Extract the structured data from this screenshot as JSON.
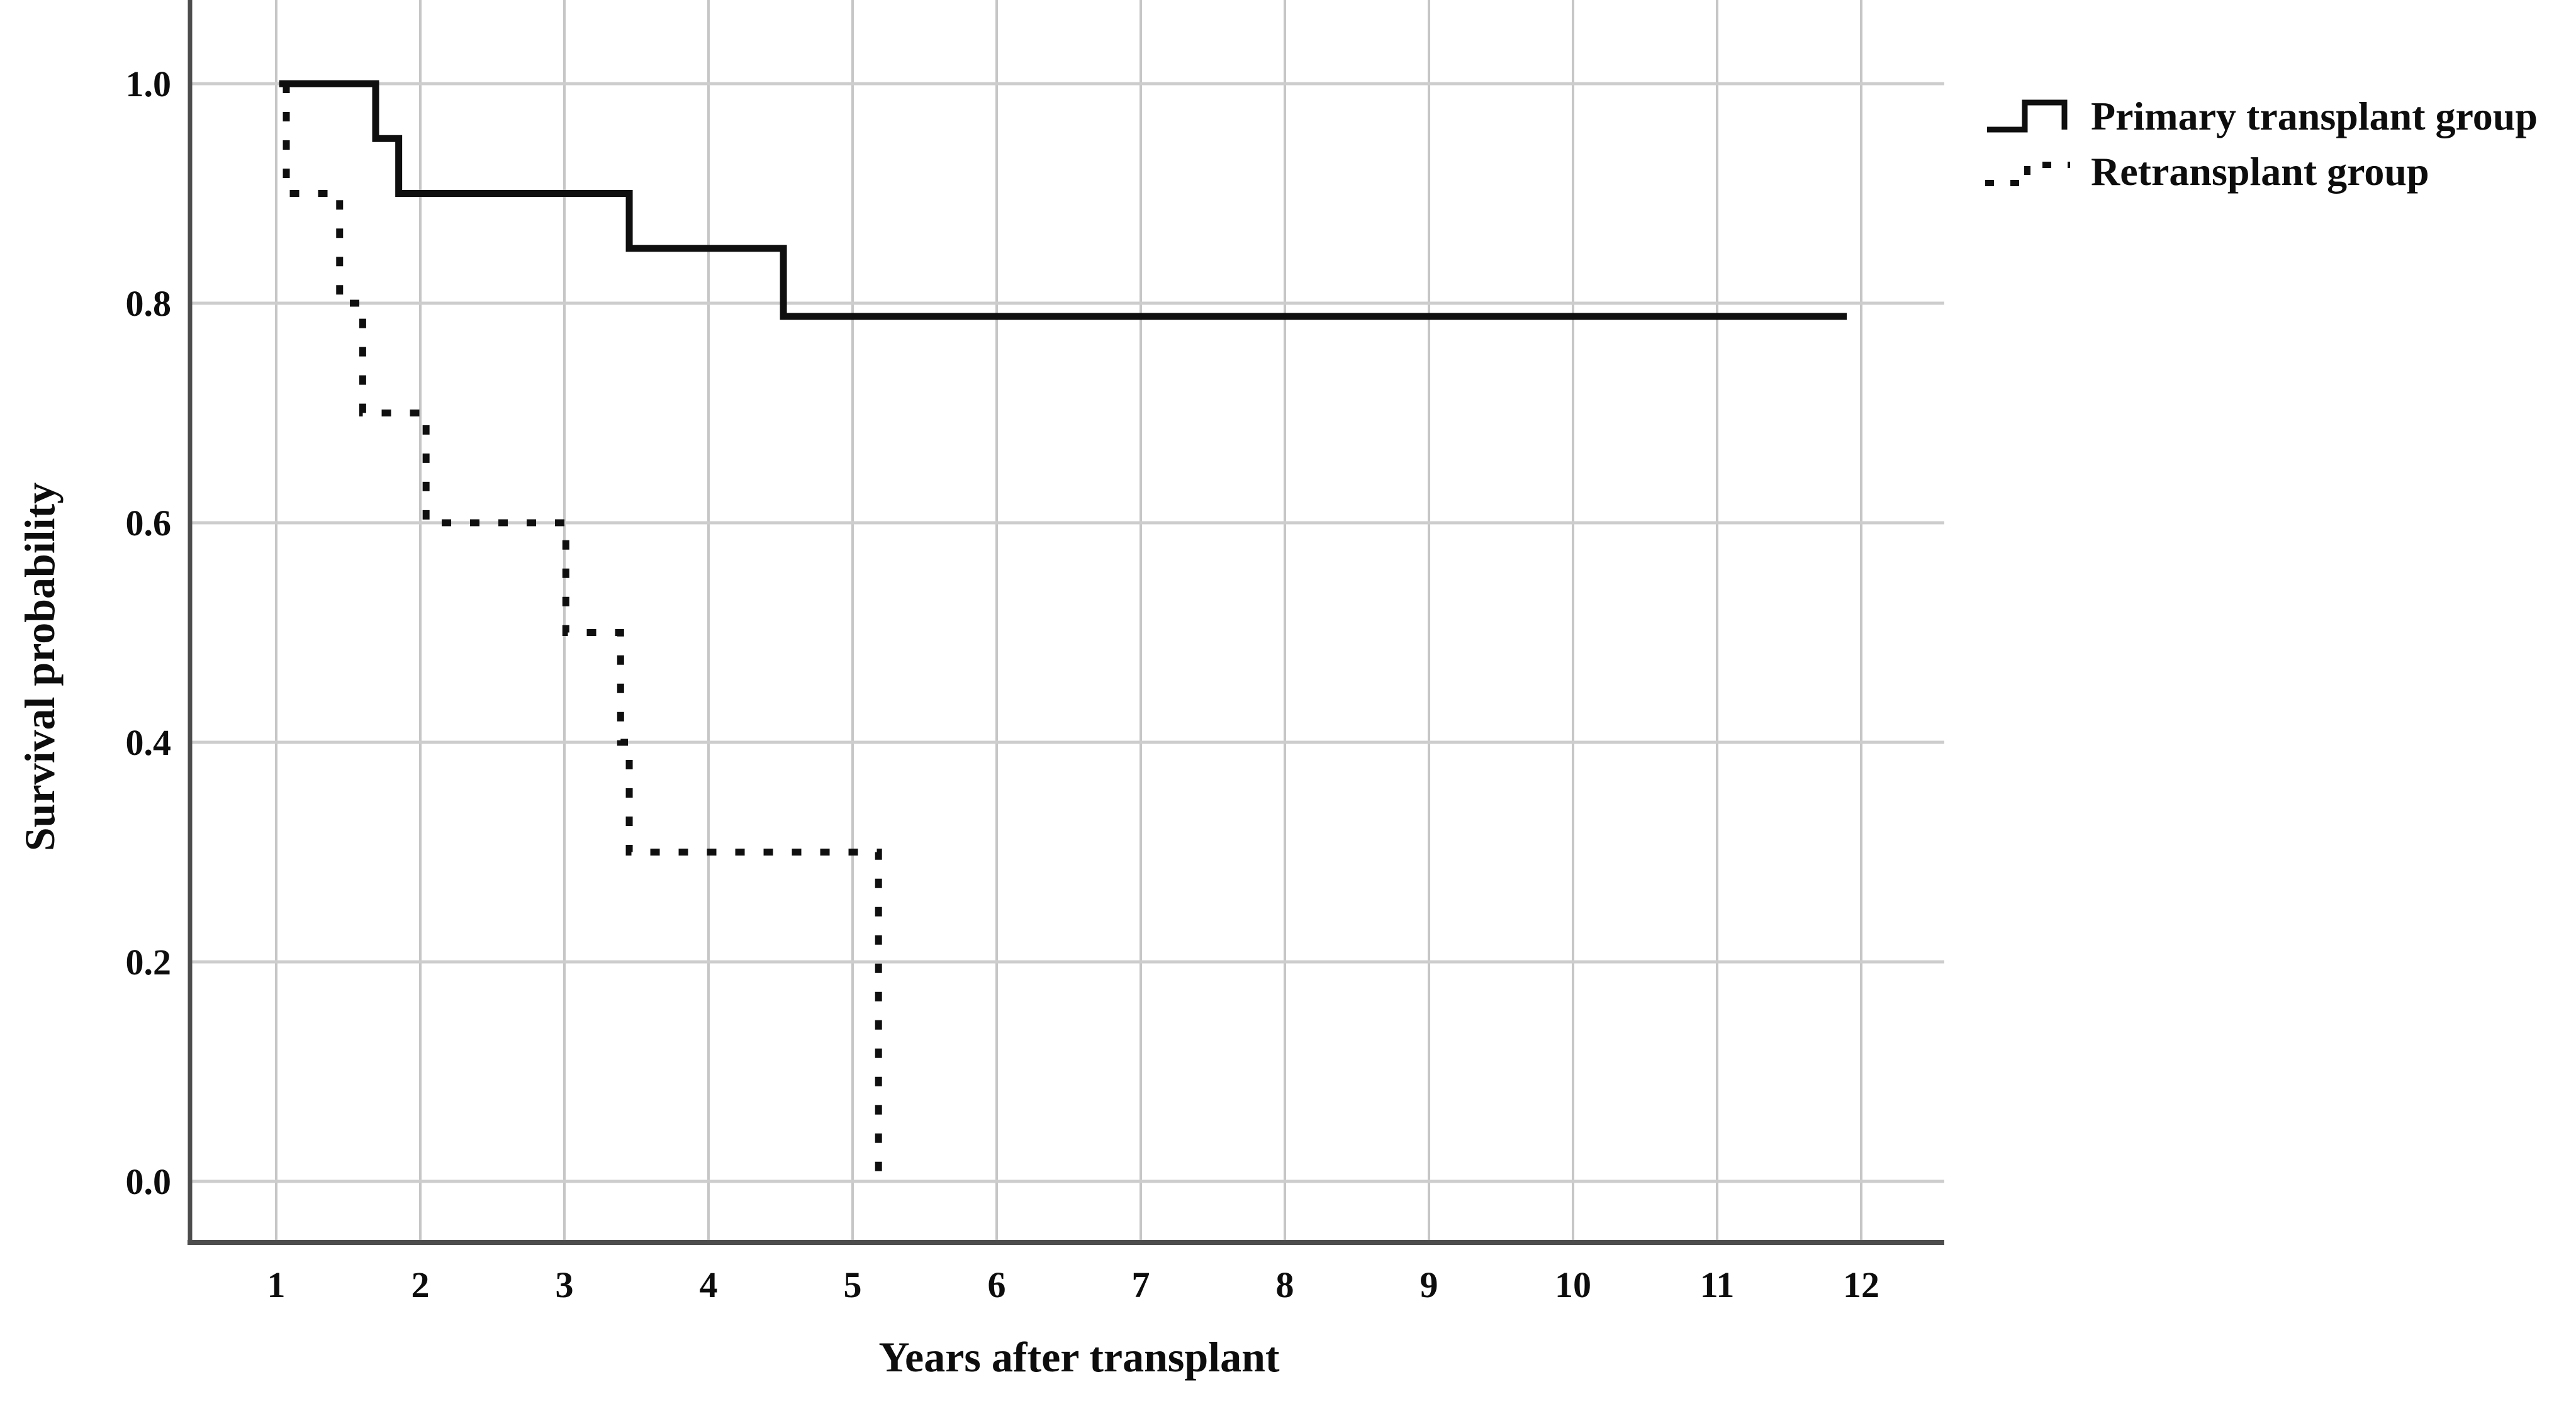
{
  "page": {
    "background": "#ffffff"
  },
  "colors": {
    "grid_vertical": "#c6c6c6",
    "grid_horizontal": "#cdcdcd",
    "axis": "#4d4d4d",
    "line": "#0f0f0f",
    "text": "#0d0d0d"
  },
  "chart_data": {
    "type": "line",
    "subtype": "kaplan_meier_step",
    "title": "",
    "xlabel": "Years after transplant",
    "ylabel": "Survival probability",
    "x_ticks": [
      1,
      2,
      3,
      4,
      5,
      6,
      7,
      8,
      9,
      10,
      11,
      12
    ],
    "y_ticks": [
      "1.0",
      "0.8",
      "0.6",
      "0.4",
      "0.2",
      "0.0"
    ],
    "y_tick_values": [
      1.0,
      0.8,
      0.6,
      0.4,
      0.2,
      0.0
    ],
    "xlim": [
      0.4,
      12.6
    ],
    "ylim": [
      -0.05,
      1.08
    ],
    "grid": true,
    "legend_position": "top-right",
    "series": [
      {
        "name": "Primary transplant group",
        "line_style": "solid",
        "step_points": [
          [
            1.02,
            1.0
          ],
          [
            1.69,
            1.0
          ],
          [
            1.69,
            0.95
          ],
          [
            1.85,
            0.95
          ],
          [
            1.85,
            0.9
          ],
          [
            3.45,
            0.9
          ],
          [
            3.45,
            0.85
          ],
          [
            4.52,
            0.85
          ],
          [
            4.52,
            0.788
          ],
          [
            11.9,
            0.788
          ]
        ]
      },
      {
        "name": "Retransplant group",
        "line_style": "dotted",
        "step_points": [
          [
            1.07,
            1.0
          ],
          [
            1.07,
            0.9
          ],
          [
            1.44,
            0.9
          ],
          [
            1.44,
            0.8
          ],
          [
            1.6,
            0.8
          ],
          [
            1.6,
            0.7
          ],
          [
            2.04,
            0.7
          ],
          [
            2.04,
            0.6
          ],
          [
            3.01,
            0.6
          ],
          [
            3.01,
            0.5
          ],
          [
            3.39,
            0.5
          ],
          [
            3.39,
            0.4
          ],
          [
            3.45,
            0.4
          ],
          [
            3.45,
            0.3
          ],
          [
            5.18,
            0.3
          ],
          [
            5.18,
            0.0
          ]
        ]
      }
    ]
  }
}
